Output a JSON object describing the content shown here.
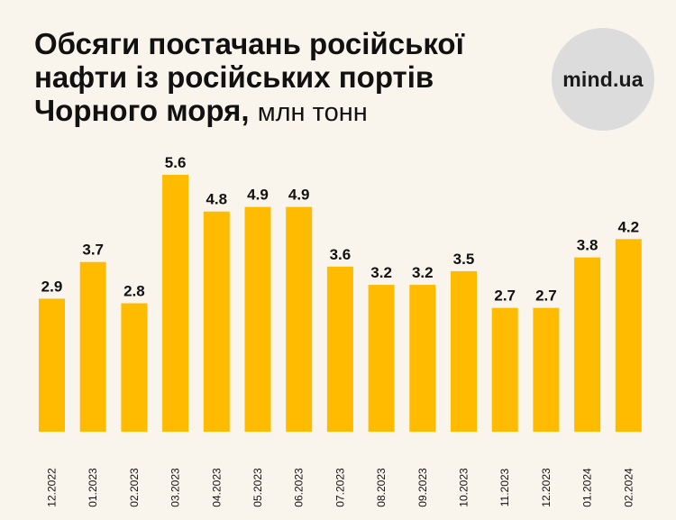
{
  "header": {
    "title": "Обсяги постачань російської нафти із російських портів Чорного моря,",
    "unit": "млн тонн"
  },
  "logo": {
    "text": "mind.ua"
  },
  "colors": {
    "background": "#faf5ec",
    "bar": "#ffbb00",
    "text": "#111111",
    "logo_bg": "#dcdcdc"
  },
  "chart_data": {
    "type": "bar",
    "categories": [
      "12.2022",
      "01.2023",
      "02.2023",
      "03.2023",
      "04.2023",
      "05.2023",
      "06.2023",
      "07.2023",
      "08.2023",
      "09.2023",
      "10.2023",
      "11.2023",
      "12.2023",
      "01.2024",
      "02.2024"
    ],
    "values": [
      2.9,
      3.7,
      2.8,
      5.6,
      4.8,
      4.9,
      4.9,
      3.6,
      3.2,
      3.2,
      3.5,
      2.7,
      2.7,
      3.8,
      4.2
    ],
    "value_labels": [
      "2.9",
      "3.7",
      "2.8",
      "5.6",
      "4.8",
      "4.9",
      "4.9",
      "3.6",
      "3.2",
      "3.2",
      "3.5",
      "2.7",
      "2.7",
      "3.8",
      "4.2"
    ],
    "title": "Обсяги постачань російської нафти із російських портів Чорного моря, млн тонн",
    "xlabel": "",
    "ylabel": "",
    "ylim": [
      0,
      5.6
    ],
    "grid": false,
    "legend": "none"
  }
}
